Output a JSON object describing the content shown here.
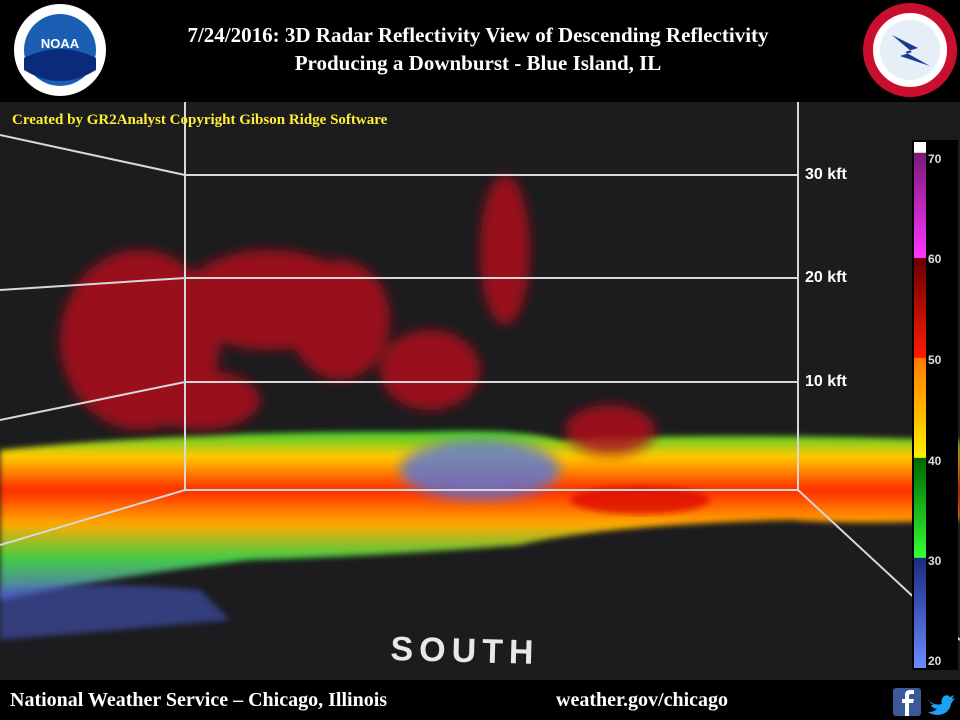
{
  "header": {
    "title_line1": "7/24/2016:  3D Radar Reflectivity View of Descending Reflectivity",
    "title_line2": "Producing a Downburst - Blue Island, IL",
    "noaa_logo": "NOAA"
  },
  "radar": {
    "credit": "Created by GR2Analyst  Copyright Gibson Ridge Software",
    "height_labels": [
      "30 kft",
      "20 kft",
      "10 kft"
    ],
    "direction": "SOUTH"
  },
  "colorbar": {
    "labels": [
      "70",
      "60",
      "50",
      "40",
      "30",
      "20"
    ]
  },
  "footer": {
    "left": "National Weather Service – Chicago, Illinois",
    "right": "weather.gov/chicago"
  }
}
